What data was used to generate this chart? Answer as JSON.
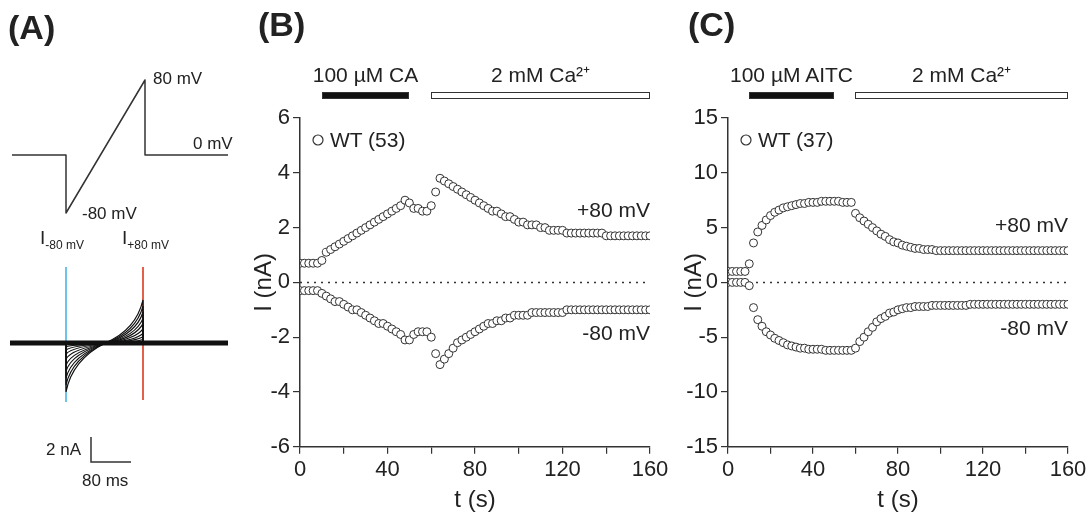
{
  "chart_data": [
    {
      "type": "other",
      "title": "(A)",
      "annotations": [
        "80 mV",
        "0 mV",
        "-80 mV",
        "I$_{-80 mV}$",
        "I$_{+80 mV}$",
        "2 nA",
        "80 ms"
      ]
    },
    {
      "type": "scatter",
      "title": "(B)",
      "xlabel": "t (s)",
      "ylabel": "I (nA)",
      "legend": "top left",
      "marker": "circle",
      "grid": false,
      "xlim": [
        0,
        160
      ],
      "xticks": [
        0,
        {
          "value": 20,
          "label": null
        },
        40,
        {
          "value": 60,
          "label": null
        },
        80,
        {
          "value": 100,
          "label": null
        },
        120,
        {
          "value": 140,
          "label": null
        },
        160
      ],
      "ylim": [
        -6,
        6
      ],
      "yticks": [
        -6,
        -4,
        -2,
        0,
        2,
        4,
        6
      ],
      "x": [
        0,
        2,
        4,
        6,
        8,
        10,
        12,
        14,
        16,
        18,
        20,
        22,
        24,
        26,
        28,
        30,
        32,
        34,
        36,
        38,
        40,
        42,
        44,
        46,
        48,
        50,
        52,
        54,
        56,
        58,
        60,
        62,
        64,
        66,
        68,
        70,
        72,
        74,
        76,
        78,
        80,
        82,
        84,
        86,
        88,
        90,
        92,
        94,
        96,
        98,
        100,
        102,
        104,
        106,
        108,
        110,
        112,
        114,
        116,
        118,
        120,
        122,
        124,
        126,
        128,
        130,
        132,
        134,
        136,
        138,
        140,
        142,
        144,
        146,
        148,
        150,
        152,
        154,
        156,
        158,
        160
      ],
      "series": [
        {
          "name": "WT (53)",
          "color": "#333333",
          "values": [
            0.7,
            0.7,
            0.7,
            0.7,
            0.7,
            0.8,
            1.1,
            1.2,
            1.3,
            1.4,
            1.5,
            1.6,
            1.7,
            1.8,
            1.9,
            2.0,
            2.1,
            2.2,
            2.3,
            2.4,
            2.5,
            2.6,
            2.7,
            2.8,
            3.0,
            2.9,
            2.7,
            2.7,
            2.6,
            2.6,
            2.8,
            3.3,
            3.8,
            3.7,
            3.6,
            3.5,
            3.4,
            3.3,
            3.2,
            3.1,
            3.0,
            2.9,
            2.8,
            2.7,
            2.6,
            2.6,
            2.5,
            2.4,
            2.4,
            2.3,
            2.2,
            2.2,
            2.1,
            2.1,
            2.1,
            2.0,
            2.0,
            1.9,
            1.9,
            1.9,
            1.9,
            1.8,
            1.8,
            1.8,
            1.8,
            1.8,
            1.8,
            1.8,
            1.8,
            1.8,
            1.7,
            1.7,
            1.7,
            1.7,
            1.7,
            1.7,
            1.7,
            1.7,
            1.7,
            1.7,
            1.7
          ]
        },
        {
          "color": "#333333",
          "values": [
            -0.3,
            -0.3,
            -0.3,
            -0.3,
            -0.3,
            -0.4,
            -0.5,
            -0.6,
            -0.7,
            -0.7,
            -0.8,
            -0.9,
            -1.0,
            -1.0,
            -1.1,
            -1.2,
            -1.3,
            -1.4,
            -1.5,
            -1.5,
            -1.6,
            -1.7,
            -1.8,
            -1.9,
            -2.1,
            -2.1,
            -1.9,
            -1.8,
            -1.8,
            -1.8,
            -2.0,
            -2.6,
            -3.0,
            -2.8,
            -2.6,
            -2.4,
            -2.2,
            -2.1,
            -2.0,
            -1.9,
            -1.8,
            -1.7,
            -1.6,
            -1.5,
            -1.5,
            -1.4,
            -1.4,
            -1.3,
            -1.3,
            -1.2,
            -1.2,
            -1.2,
            -1.2,
            -1.1,
            -1.1,
            -1.1,
            -1.1,
            -1.1,
            -1.1,
            -1.1,
            -1.1,
            -1.0,
            -1.0,
            -1.0,
            -1.0,
            -1.0,
            -1.0,
            -1.0,
            -1.0,
            -1.0,
            -1.0,
            -1.0,
            -1.0,
            -1.0,
            -1.0,
            -1.0,
            -1.0,
            -1.0,
            -1.0,
            -1.0,
            -1.0
          ]
        }
      ],
      "annotations": [
        "100 µM CA",
        "2 mM Ca²⁺",
        "+80 mV",
        "-80 mV"
      ],
      "ref_lines": [
        {
          "axis": "y",
          "value": 0,
          "line_style": "dotted",
          "color": "#333333"
        }
      ]
    },
    {
      "type": "scatter",
      "title": "(C)",
      "xlabel": "t (s)",
      "ylabel": "I (nA)",
      "legend": "top left",
      "marker": "circle",
      "grid": false,
      "xlim": [
        0,
        160
      ],
      "xticks": [
        0,
        {
          "value": 20,
          "label": null
        },
        40,
        {
          "value": 60,
          "label": null
        },
        80,
        {
          "value": 100,
          "label": null
        },
        120,
        {
          "value": 140,
          "label": null
        },
        160
      ],
      "ylim": [
        -15,
        15
      ],
      "yticks": [
        -15,
        -10,
        -5,
        0,
        5,
        10,
        15
      ],
      "x": [
        0,
        2,
        4,
        6,
        8,
        10,
        12,
        14,
        16,
        18,
        20,
        22,
        24,
        26,
        28,
        30,
        32,
        34,
        36,
        38,
        40,
        42,
        44,
        46,
        48,
        50,
        52,
        54,
        56,
        58,
        60,
        62,
        64,
        66,
        68,
        70,
        72,
        74,
        76,
        78,
        80,
        82,
        84,
        86,
        88,
        90,
        92,
        94,
        96,
        98,
        100,
        102,
        104,
        106,
        108,
        110,
        112,
        114,
        116,
        118,
        120,
        122,
        124,
        126,
        128,
        130,
        132,
        134,
        136,
        138,
        140,
        142,
        144,
        146,
        148,
        150,
        152,
        154,
        156,
        158,
        160
      ],
      "series": [
        {
          "name": "WT (37)",
          "color": "#333333",
          "values": [
            1,
            1,
            1,
            1,
            1,
            1.7,
            3.6,
            4.6,
            5.2,
            5.7,
            6.1,
            6.4,
            6.6,
            6.8,
            6.9,
            7.0,
            7.1,
            7.2,
            7.2,
            7.3,
            7.3,
            7.3,
            7.4,
            7.4,
            7.4,
            7.4,
            7.4,
            7.3,
            7.3,
            7.3,
            6.3,
            5.9,
            5.6,
            5.3,
            5.0,
            4.7,
            4.4,
            4.2,
            3.9,
            3.7,
            3.6,
            3.4,
            3.3,
            3.2,
            3.1,
            3.1,
            3.0,
            3.0,
            3.0,
            2.9,
            2.9,
            2.9,
            2.9,
            2.9,
            2.9,
            2.9,
            2.9,
            2.9,
            2.9,
            2.9,
            2.9,
            2.9,
            2.9,
            2.9,
            2.9,
            2.9,
            2.9,
            2.9,
            2.9,
            2.9,
            2.9,
            2.9,
            2.9,
            2.9,
            2.9,
            2.9,
            2.9,
            2.9,
            2.9,
            2.9,
            2.9
          ]
        },
        {
          "color": "#333333",
          "values": [
            0,
            0,
            0,
            0,
            0,
            -0.3,
            -2.3,
            -3.4,
            -4.0,
            -4.5,
            -4.8,
            -5.1,
            -5.3,
            -5.5,
            -5.7,
            -5.8,
            -5.9,
            -6.0,
            -6.0,
            -6.1,
            -6.1,
            -6.1,
            -6.1,
            -6.2,
            -6.2,
            -6.2,
            -6.2,
            -6.2,
            -6.2,
            -6.2,
            -6.0,
            -5.4,
            -5.0,
            -4.5,
            -4.1,
            -3.6,
            -3.3,
            -3.1,
            -2.8,
            -2.7,
            -2.5,
            -2.4,
            -2.3,
            -2.3,
            -2.2,
            -2.2,
            -2.2,
            -2.2,
            -2.1,
            -2.1,
            -2.1,
            -2.1,
            -2.1,
            -2.1,
            -2.1,
            -2.1,
            -2.1,
            -2.0,
            -2.0,
            -2.0,
            -2.0,
            -2.0,
            -2.0,
            -2.0,
            -2.0,
            -2.0,
            -2.0,
            -2.0,
            -2.0,
            -2.0,
            -2.0,
            -2.0,
            -2.0,
            -2.0,
            -2.0,
            -2.0,
            -2.0,
            -2.0,
            -2.0,
            -2.0,
            -2.0
          ]
        }
      ],
      "annotations": [
        "100 µM AITC",
        "2 mM Ca²⁺",
        "+80 mV",
        "-80 mV"
      ],
      "ref_lines": [
        {
          "axis": "y",
          "value": 0,
          "line_style": "dotted",
          "color": "#333333"
        }
      ]
    }
  ]
}
